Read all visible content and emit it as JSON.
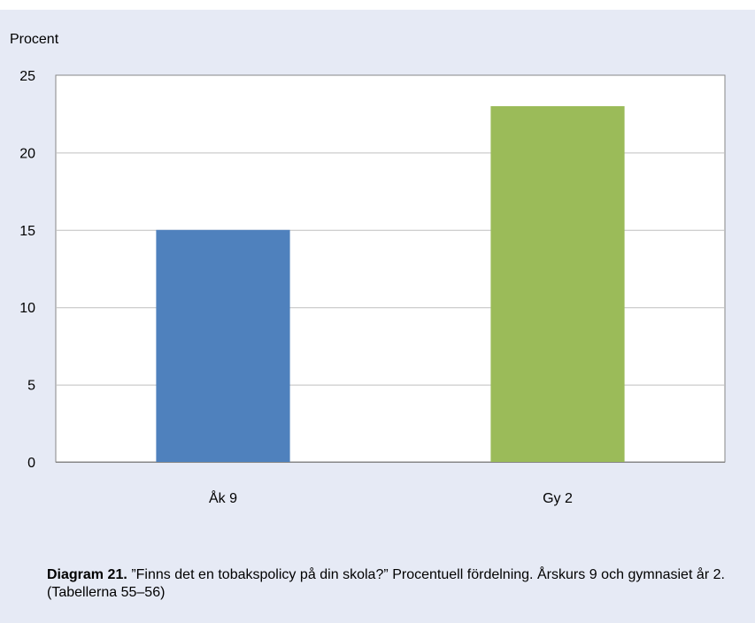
{
  "chart_data": {
    "type": "bar",
    "ylabel": "Procent",
    "ylim": [
      0,
      25
    ],
    "yticks": [
      0,
      5,
      10,
      15,
      20,
      25
    ],
    "grid": true,
    "categories": [
      "Åk 9",
      "Gy 2"
    ],
    "values": [
      15,
      23
    ],
    "colors": [
      "#4f81bd",
      "#9bbb59"
    ]
  },
  "caption": {
    "label": "Diagram 21.",
    "text": " ”Finns det en tobakspolicy på din skola?” Procentuell fördelning. Årskurs 9 och gymnasiet år 2. (Tabellerna 55–56)"
  }
}
